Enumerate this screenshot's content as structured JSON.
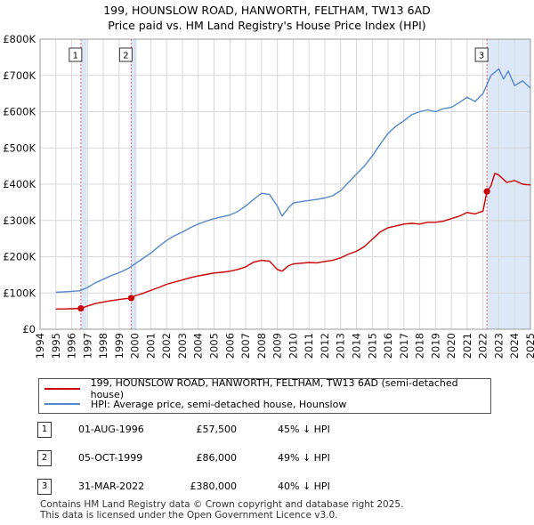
{
  "title_line1": "199, HOUNSLOW ROAD, HANWORTH, FELTHAM, TW13 6AD",
  "title_line2": "Price paid vs. HM Land Registry's House Price Index (HPI)",
  "chart_data": {
    "type": "line",
    "ylim": [
      0,
      800000
    ],
    "xlim": [
      1994,
      2025
    ],
    "y_ticks": [
      0,
      100000,
      200000,
      300000,
      400000,
      500000,
      600000,
      700000,
      800000
    ],
    "y_tick_labels": [
      "£0",
      "£100K",
      "£200K",
      "£300K",
      "£400K",
      "£500K",
      "£600K",
      "£700K",
      "£800K"
    ],
    "x_ticks": [
      "1994",
      "1995",
      "1996",
      "1997",
      "1998",
      "1999",
      "2000",
      "2001",
      "2002",
      "2003",
      "2004",
      "2005",
      "2006",
      "2007",
      "2008",
      "2009",
      "2010",
      "2011",
      "2012",
      "2013",
      "2014",
      "2015",
      "2016",
      "2017",
      "2018",
      "2019",
      "2020",
      "2021",
      "2022",
      "2023",
      "2024",
      "2025"
    ],
    "series": [
      {
        "name": "199, HOUNSLOW ROAD, HANWORTH, FELTHAM, TW13 6AD (semi-detached house)",
        "color": "#cc0000",
        "x": [
          1995.0,
          1995.5,
          1996.0,
          1996.58,
          1997.0,
          1997.5,
          1998.0,
          1998.5,
          1999.0,
          1999.5,
          1999.76,
          2000.0,
          2000.5,
          2001.0,
          2001.5,
          2002.0,
          2002.5,
          2003.0,
          2003.5,
          2004.0,
          2004.5,
          2005.0,
          2005.5,
          2006.0,
          2006.5,
          2007.0,
          2007.5,
          2008.0,
          2008.5,
          2009.0,
          2009.3,
          2009.7,
          2010.0,
          2010.5,
          2011.0,
          2011.5,
          2012.0,
          2012.5,
          2013.0,
          2013.5,
          2014.0,
          2014.5,
          2015.0,
          2015.5,
          2016.0,
          2016.5,
          2017.0,
          2017.5,
          2018.0,
          2018.5,
          2019.0,
          2019.5,
          2020.0,
          2020.5,
          2021.0,
          2021.5,
          2022.0,
          2022.25,
          2022.5,
          2022.75,
          2023.0,
          2023.5,
          2024.0,
          2024.5,
          2025.0
        ],
        "values": [
          56000,
          56000,
          56500,
          57500,
          64000,
          71000,
          75000,
          79000,
          82000,
          85000,
          86000,
          92000,
          99000,
          107000,
          115000,
          124000,
          130000,
          136000,
          142000,
          147000,
          151000,
          155000,
          157000,
          160000,
          165000,
          172000,
          185000,
          190000,
          188000,
          165000,
          160000,
          175000,
          180000,
          182000,
          184000,
          183000,
          187000,
          190000,
          197000,
          207000,
          215000,
          228000,
          248000,
          268000,
          280000,
          285000,
          290000,
          292000,
          290000,
          295000,
          295000,
          298000,
          305000,
          312000,
          322000,
          318000,
          326000,
          380000,
          395000,
          430000,
          425000,
          405000,
          410000,
          400000,
          398000
        ]
      },
      {
        "name": "HPI: Average price, semi-detached house, Hounslow",
        "color": "#5588cc",
        "x": [
          1995.0,
          1995.5,
          1996.0,
          1996.5,
          1997.0,
          1997.5,
          1998.0,
          1998.5,
          1999.0,
          1999.5,
          2000.0,
          2000.5,
          2001.0,
          2001.5,
          2002.0,
          2002.5,
          2003.0,
          2003.5,
          2004.0,
          2004.5,
          2005.0,
          2005.5,
          2006.0,
          2006.5,
          2007.0,
          2007.5,
          2008.0,
          2008.5,
          2009.0,
          2009.3,
          2009.7,
          2010.0,
          2010.5,
          2011.0,
          2011.5,
          2012.0,
          2012.5,
          2013.0,
          2013.5,
          2014.0,
          2014.5,
          2015.0,
          2015.5,
          2016.0,
          2016.5,
          2017.0,
          2017.5,
          2018.0,
          2018.5,
          2019.0,
          2019.5,
          2020.0,
          2020.5,
          2021.0,
          2021.5,
          2022.0,
          2022.5,
          2023.0,
          2023.3,
          2023.6,
          2024.0,
          2024.5,
          2025.0
        ],
        "values": [
          102000,
          103000,
          104500,
          106000,
          115000,
          128000,
          138000,
          148000,
          156000,
          166000,
          180000,
          195000,
          210000,
          228000,
          245000,
          258000,
          268000,
          280000,
          290000,
          298000,
          305000,
          310000,
          315000,
          325000,
          340000,
          358000,
          375000,
          372000,
          340000,
          312000,
          335000,
          348000,
          352000,
          355000,
          358000,
          362000,
          368000,
          382000,
          405000,
          428000,
          450000,
          478000,
          510000,
          540000,
          560000,
          575000,
          592000,
          600000,
          605000,
          600000,
          608000,
          612000,
          625000,
          640000,
          628000,
          650000,
          700000,
          718000,
          690000,
          712000,
          672000,
          685000,
          665000
        ]
      }
    ],
    "sales": [
      {
        "label": "1",
        "x": 1996.58,
        "y": 57500
      },
      {
        "label": "2",
        "x": 1999.76,
        "y": 86000
      },
      {
        "label": "3",
        "x": 2022.25,
        "y": 380000
      }
    ]
  },
  "legend": {
    "price_paid": "199, HOUNSLOW ROAD, HANWORTH, FELTHAM, TW13 6AD (semi-detached house)",
    "hpi": "HPI: Average price, semi-detached house, Hounslow"
  },
  "transactions": [
    {
      "num": "1",
      "date": "01-AUG-1996",
      "price": "£57,500",
      "hpi": "45% ↓ HPI"
    },
    {
      "num": "2",
      "date": "05-OCT-1999",
      "price": "£86,000",
      "hpi": "49% ↓ HPI"
    },
    {
      "num": "3",
      "date": "31-MAR-2022",
      "price": "£380,000",
      "hpi": "40% ↓ HPI"
    }
  ],
  "footer_line1": "Contains HM Land Registry data © Crown copyright and database right 2025.",
  "footer_line2": "This data is licensed under the Open Government Licence v3.0."
}
